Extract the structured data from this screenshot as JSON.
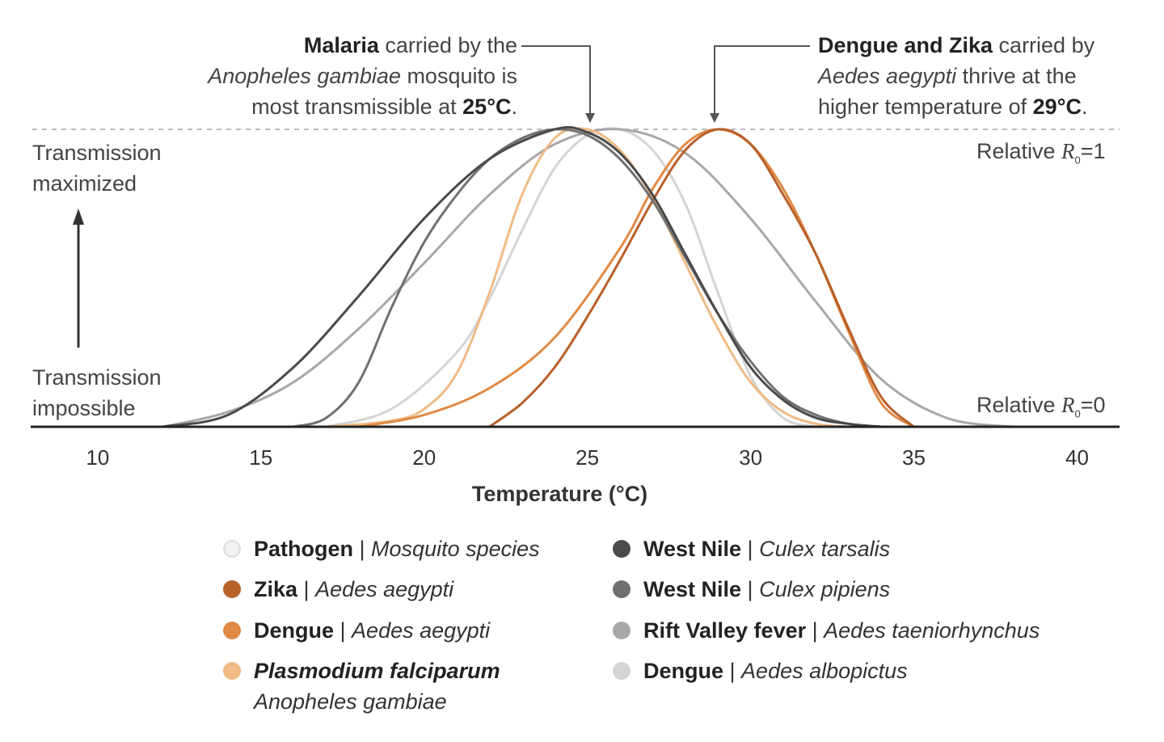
{
  "chart_data": {
    "type": "line",
    "xlabel": "Temperature (°C)",
    "xlim": [
      8,
      41.3
    ],
    "ylim": [
      0,
      1
    ],
    "xticks": [
      "10",
      "15",
      "20",
      "25",
      "30",
      "35",
      "40"
    ],
    "series": [
      {
        "name": "Zika | Aedes aegypti",
        "color": "#b8602a",
        "x": [
          22,
          23,
          24,
          25,
          26,
          27,
          28,
          29,
          30,
          31,
          32,
          33,
          34,
          35
        ],
        "y": [
          0,
          0.08,
          0.2,
          0.37,
          0.56,
          0.76,
          0.93,
          1.0,
          0.95,
          0.78,
          0.58,
          0.33,
          0.1,
          0
        ]
      },
      {
        "name": "Dengue | Aedes aegypti",
        "color": "#e08a45",
        "x": [
          18,
          20,
          22,
          24,
          26,
          27,
          28,
          29,
          30,
          31,
          32,
          33,
          34,
          35
        ],
        "y": [
          0,
          0.04,
          0.13,
          0.3,
          0.6,
          0.8,
          0.95,
          1.0,
          0.95,
          0.8,
          0.58,
          0.32,
          0.08,
          0
        ]
      },
      {
        "name": "Plasmodium falciparum | Anopheles gambiae",
        "color": "#f0bb85",
        "x": [
          17,
          19,
          20,
          21,
          22,
          23,
          24,
          25,
          26,
          27,
          28,
          29,
          30,
          31,
          32,
          33
        ],
        "y": [
          0,
          0.02,
          0.06,
          0.18,
          0.45,
          0.78,
          0.97,
          1.0,
          0.93,
          0.77,
          0.55,
          0.33,
          0.15,
          0.05,
          0.01,
          0
        ]
      },
      {
        "name": "West Nile | Culex tarsalis",
        "color": "#4a4a4a",
        "x": [
          12,
          14,
          16,
          18,
          20,
          22,
          24,
          25,
          26,
          27,
          28,
          29,
          30,
          31,
          32,
          33,
          34
        ],
        "y": [
          0,
          0.04,
          0.2,
          0.44,
          0.7,
          0.9,
          1.0,
          0.99,
          0.92,
          0.78,
          0.58,
          0.38,
          0.2,
          0.09,
          0.03,
          0.01,
          0
        ]
      },
      {
        "name": "West Nile | Culex pipiens",
        "color": "#707070",
        "x": [
          16,
          17,
          18,
          19,
          20,
          21,
          22,
          23,
          24,
          25,
          26,
          27,
          28,
          29,
          30,
          31,
          32,
          33,
          34
        ],
        "y": [
          0,
          0.03,
          0.15,
          0.4,
          0.62,
          0.78,
          0.9,
          0.97,
          1.0,
          0.98,
          0.9,
          0.76,
          0.57,
          0.38,
          0.22,
          0.1,
          0.04,
          0.01,
          0
        ]
      },
      {
        "name": "Rift Valley fever | Aedes taeniorhynchus",
        "color": "#a8a8a8",
        "x": [
          12,
          14,
          16,
          18,
          20,
          22,
          24,
          26,
          28,
          30,
          32,
          34,
          36,
          38
        ],
        "y": [
          0,
          0.05,
          0.15,
          0.33,
          0.55,
          0.78,
          0.95,
          1.0,
          0.92,
          0.7,
          0.42,
          0.16,
          0.03,
          0
        ]
      },
      {
        "name": "Dengue | Aedes albopictus",
        "color": "#d4d4d4",
        "x": [
          17,
          19,
          21,
          22,
          23,
          24,
          25,
          26,
          27,
          28,
          29,
          30,
          31,
          32
        ],
        "y": [
          0,
          0.06,
          0.25,
          0.43,
          0.66,
          0.87,
          0.98,
          1.0,
          0.93,
          0.75,
          0.45,
          0.17,
          0.03,
          0
        ]
      }
    ]
  },
  "annotations": {
    "left": {
      "bold": "Malaria",
      "text1": " carried by the",
      "italic": "Anopheles gambiae",
      "text2": " mosquito is",
      "text3": "most transmissible at ",
      "temp": "25°C",
      "end": "."
    },
    "right": {
      "bold": "Dengue and Zika",
      "text1": " carried by",
      "italic": "Aedes aegypti",
      "text2": " thrive at the",
      "text3": "higher temperature of ",
      "temp": "29°C",
      "end": "."
    }
  },
  "side_labels": {
    "top_line1": "Transmission",
    "top_line2": "maximized",
    "bottom_line1": "Transmission",
    "bottom_line2": "impossible"
  },
  "relative_labels": {
    "top_prefix": "Relative ",
    "top_r": "R",
    "top_sub": "0",
    "top_suffix": "=1",
    "bottom_prefix": "Relative ",
    "bottom_r": "R",
    "bottom_sub": "0",
    "bottom_suffix": "=0"
  },
  "legend": {
    "header": {
      "bold": "Pathogen",
      "sep": " | ",
      "italic": "Mosquito species",
      "color": "#f2f2f2"
    },
    "items": [
      {
        "bold": "Zika",
        "sep": " | ",
        "italic": "Aedes aegypti",
        "color": "#b8602a"
      },
      {
        "bold": "Dengue",
        "sep": " | ",
        "italic": "Aedes aegypti",
        "color": "#e08a45"
      },
      {
        "bold": "Plasmodium falciparum",
        "italic": "Anopheles gambiae",
        "color": "#f0bb85"
      },
      {
        "bold": "West Nile",
        "sep": " | ",
        "italic": "Culex tarsalis",
        "color": "#4a4a4a"
      },
      {
        "bold": "West Nile",
        "sep": " | ",
        "italic": "Culex pipiens",
        "color": "#707070"
      },
      {
        "bold": "Rift Valley fever",
        "sep": " | ",
        "italic": "Aedes taeniorhynchus",
        "color": "#a8a8a8"
      },
      {
        "bold": "Dengue",
        "sep": " | ",
        "italic": "Aedes albopictus",
        "color": "#d4d4d4"
      }
    ]
  }
}
